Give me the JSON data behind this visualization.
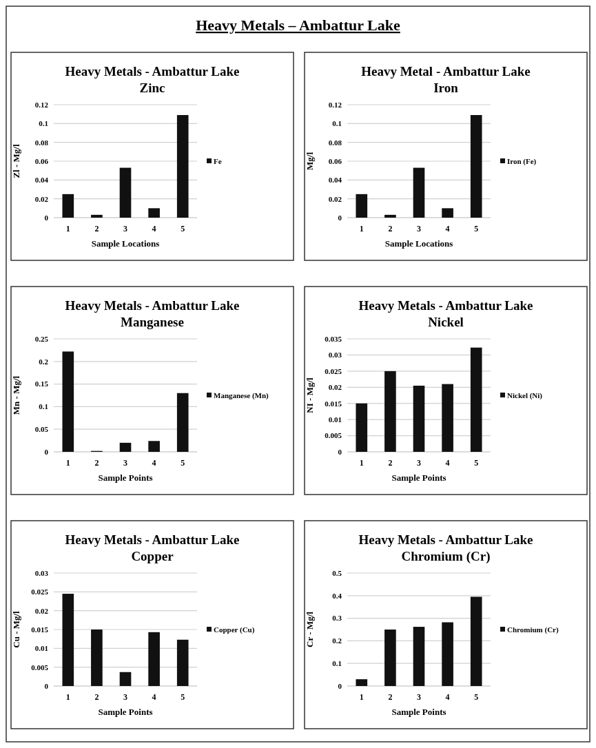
{
  "chart_data": [
    {
      "type": "other",
      "title": "Heavy Metals – Ambattur Lake"
    },
    {
      "type": "bar",
      "title": "Heavy Metals - Ambattur Lake",
      "subtitle": "Zinc",
      "xlabel": "Sample Locations",
      "ylabel": "Zl - Mg/l",
      "categories": [
        "1",
        "2",
        "3",
        "4",
        "5"
      ],
      "series": [
        {
          "name": "Fe",
          "color": "#111111",
          "values": [
            0.025,
            0.003,
            0.053,
            0.01,
            0.109
          ]
        }
      ],
      "ylim": [
        0,
        0.12
      ],
      "yticks": [
        0,
        0.02,
        0.04,
        0.06,
        0.08,
        0.1,
        0.12
      ],
      "grid": "y",
      "legend": "right"
    },
    {
      "type": "bar",
      "title": "Heavy Metal - Ambattur Lake",
      "subtitle": "Iron",
      "xlabel": "Sample Locations",
      "ylabel": "Mg/l",
      "categories": [
        "1",
        "2",
        "3",
        "4",
        "5"
      ],
      "series": [
        {
          "name": "Iron (Fe)",
          "color": "#111111",
          "values": [
            0.025,
            0.003,
            0.053,
            0.01,
            0.109
          ]
        }
      ],
      "ylim": [
        0,
        0.12
      ],
      "yticks": [
        0,
        0.02,
        0.04,
        0.06,
        0.08,
        0.1,
        0.12
      ],
      "grid": "y",
      "legend": "right"
    },
    {
      "type": "bar",
      "title": "Heavy Metals - Ambattur Lake",
      "subtitle": "Manganese",
      "xlabel": "Sample Points",
      "ylabel": "Mn - Mg/l",
      "categories": [
        "1",
        "2",
        "3",
        "4",
        "5"
      ],
      "series": [
        {
          "name": "Manganese (Mn)",
          "color": "#111111",
          "values": [
            0.222,
            0.002,
            0.02,
            0.024,
            0.13
          ]
        }
      ],
      "ylim": [
        0,
        0.25
      ],
      "yticks": [
        0,
        0.05,
        0.1,
        0.15,
        0.2,
        0.25
      ],
      "grid": "y",
      "legend": "right"
    },
    {
      "type": "bar",
      "title": "Heavy Metals - Ambattur Lake",
      "subtitle": "Nickel",
      "xlabel": "Sample Points",
      "ylabel": "NI - Mg/l",
      "categories": [
        "1",
        "2",
        "3",
        "4",
        "5"
      ],
      "series": [
        {
          "name": "Nickel (Ni)",
          "color": "#111111",
          "values": [
            0.015,
            0.025,
            0.0205,
            0.021,
            0.0323
          ]
        }
      ],
      "ylim": [
        0,
        0.035
      ],
      "yticks": [
        0,
        0.005,
        0.01,
        0.015,
        0.02,
        0.025,
        0.03,
        0.035
      ],
      "grid": "y",
      "legend": "right"
    },
    {
      "type": "bar",
      "title": "Heavy Metals - Ambattur Lake",
      "subtitle": "Copper",
      "xlabel": "Sample Points",
      "ylabel": "Cu - Mg/l",
      "categories": [
        "1",
        "2",
        "3",
        "4",
        "5"
      ],
      "series": [
        {
          "name": "Copper (Cu)",
          "color": "#111111",
          "values": [
            0.0245,
            0.015,
            0.0037,
            0.0143,
            0.0123
          ]
        }
      ],
      "ylim": [
        0,
        0.03
      ],
      "yticks": [
        0,
        0.005,
        0.01,
        0.015,
        0.02,
        0.025,
        0.03
      ],
      "grid": "y",
      "legend": "right"
    },
    {
      "type": "bar",
      "title": "Heavy Metals - Ambattur Lake",
      "subtitle": "Chromium (Cr)",
      "xlabel": "Sample Points",
      "ylabel": "Cr - Mg/l",
      "categories": [
        "1",
        "2",
        "3",
        "4",
        "5"
      ],
      "series": [
        {
          "name": "Chromium (Cr)",
          "color": "#111111",
          "values": [
            0.03,
            0.25,
            0.262,
            0.282,
            0.395
          ]
        }
      ],
      "ylim": [
        0,
        0.5
      ],
      "yticks": [
        0,
        0.1,
        0.2,
        0.3,
        0.4,
        0.5
      ],
      "grid": "y",
      "legend": "right"
    }
  ]
}
